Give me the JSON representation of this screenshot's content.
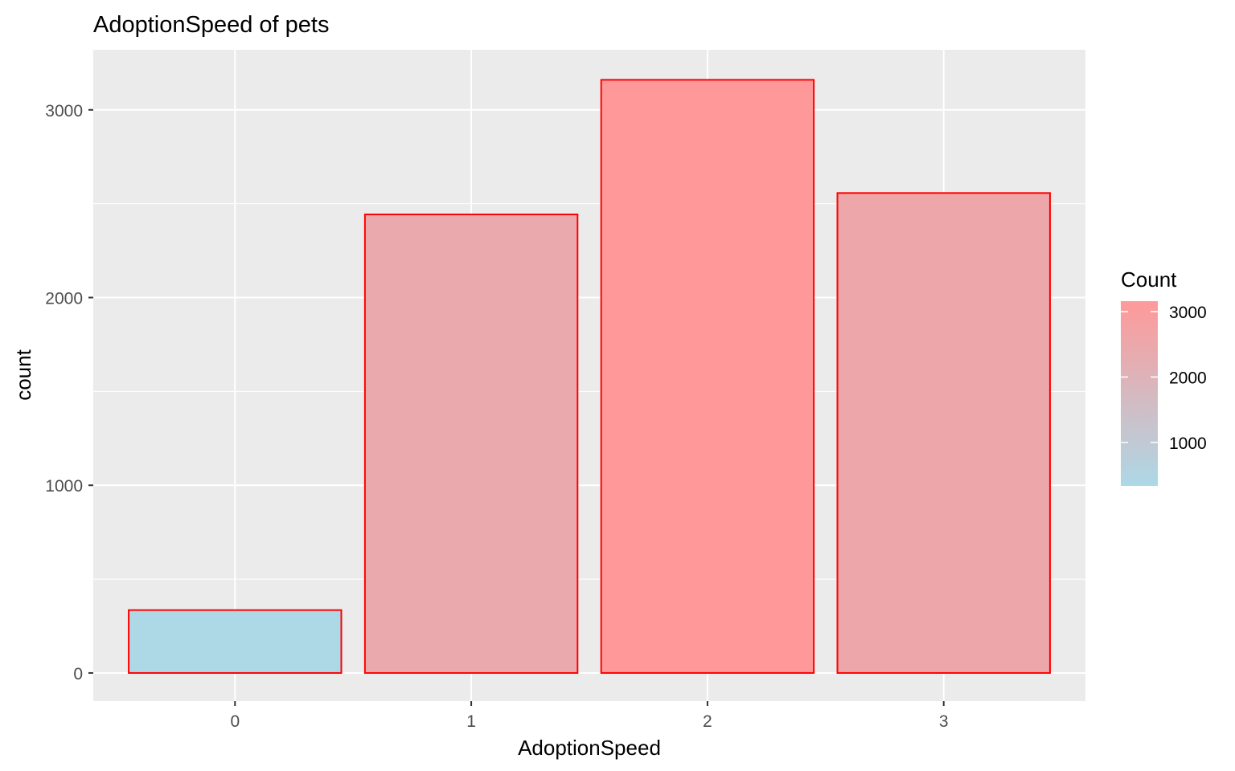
{
  "chart_data": {
    "type": "bar",
    "title": "AdoptionSpeed of pets",
    "xlabel": "AdoptionSpeed",
    "ylabel": "count",
    "categories": [
      "0",
      "1",
      "2",
      "3"
    ],
    "values": [
      335,
      2443,
      3160,
      2557
    ],
    "ylim": [
      -150,
      3320
    ],
    "yticks": [
      0,
      1000,
      2000,
      3000
    ],
    "grid": true,
    "bar_outline_color": "#ff0000",
    "panel_background": "#ebebeb",
    "legend": {
      "title": "Count",
      "placement": "right",
      "low_color": "#add8e6",
      "high_color": "#ff9999",
      "range": [
        335,
        3160
      ],
      "ticks": [
        1000,
        2000,
        3000
      ]
    }
  }
}
